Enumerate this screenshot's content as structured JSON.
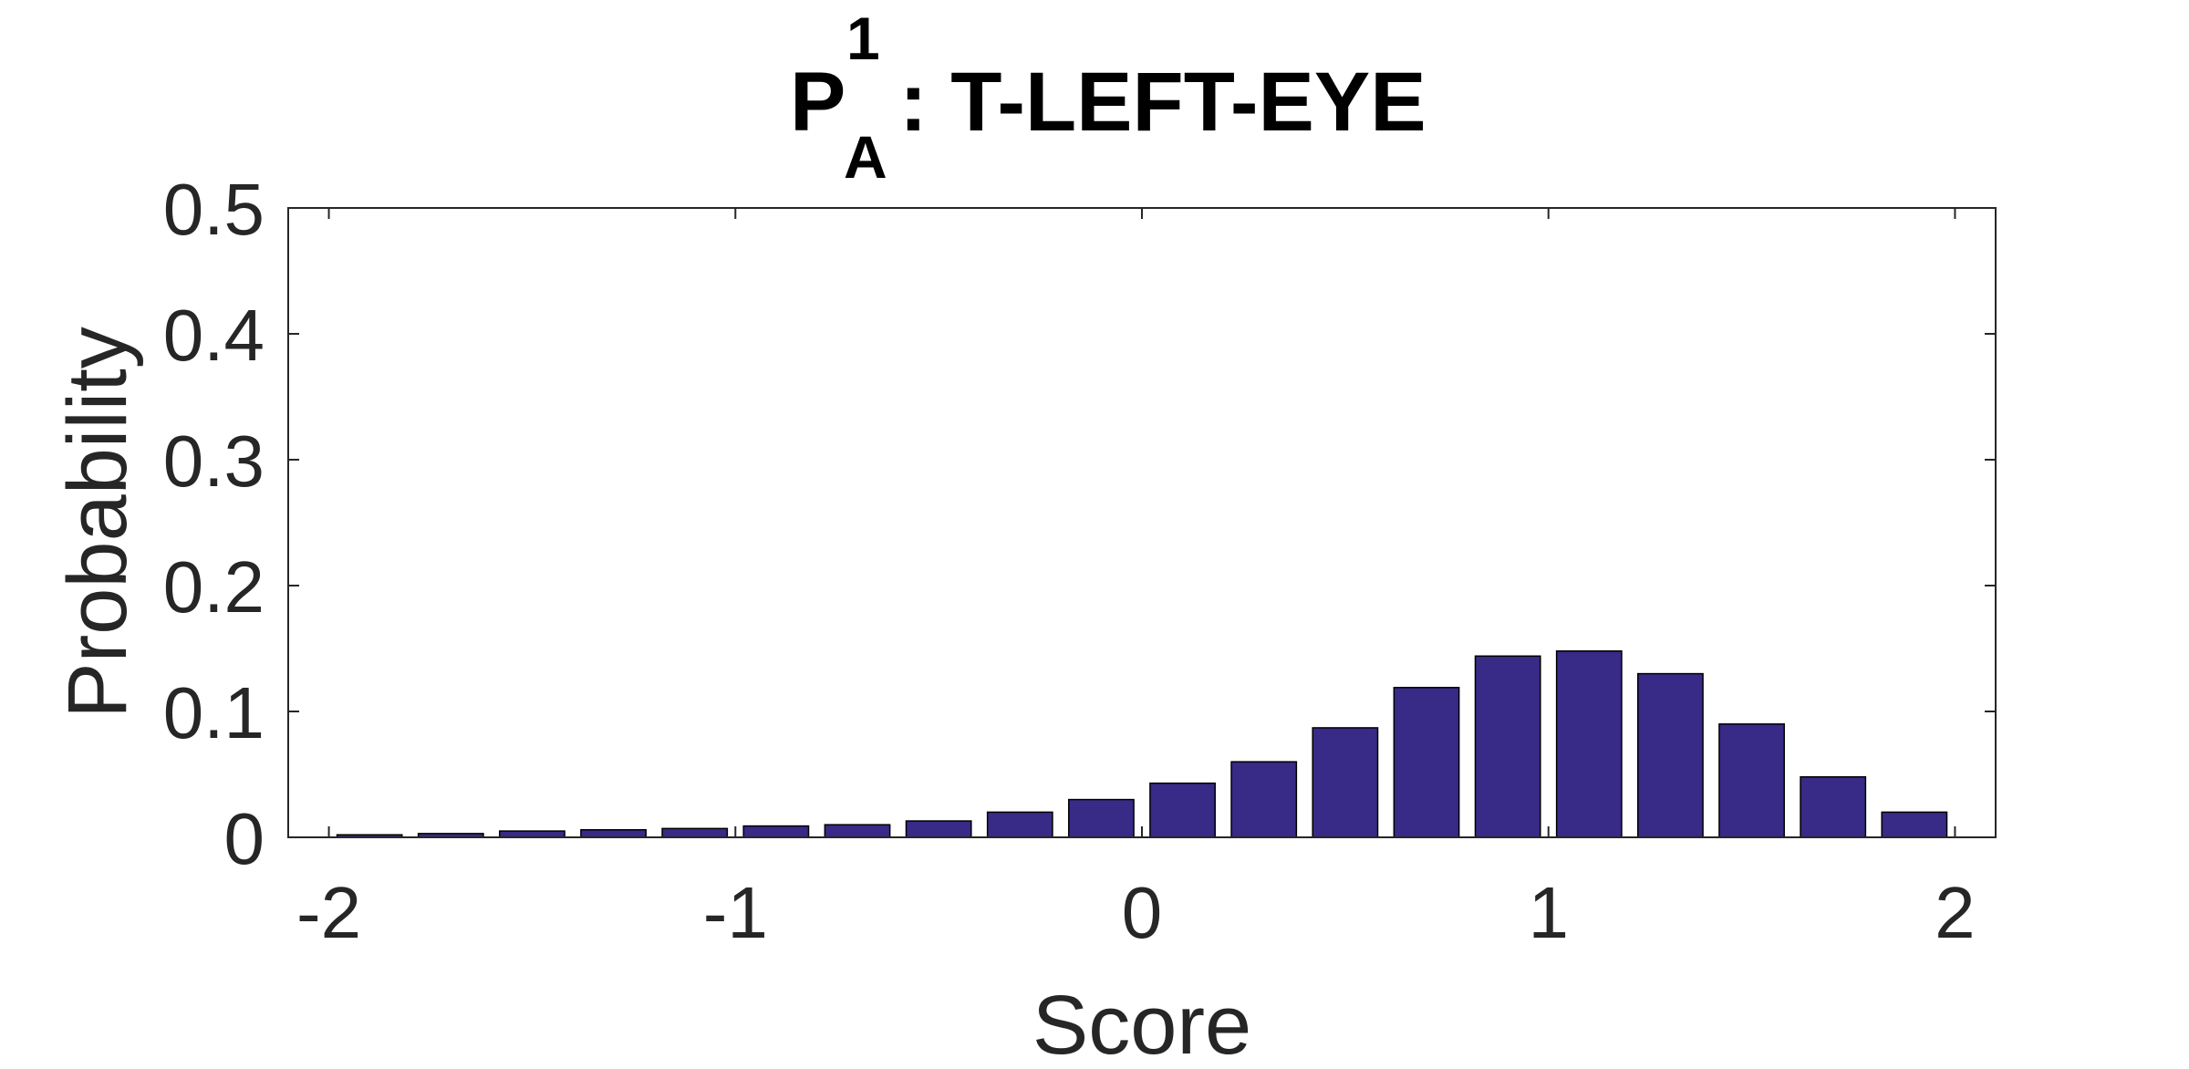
{
  "chart_data": {
    "type": "bar",
    "title": {
      "base": "P",
      "superscript": "1",
      "subscript": "A",
      "rest": ": T-LEFT-EYE"
    },
    "xlabel": "Score",
    "ylabel": "Probability",
    "xlim": [
      -2.1,
      2.1
    ],
    "ylim": [
      0,
      0.5
    ],
    "xticks": [
      -2,
      -1,
      0,
      1,
      2
    ],
    "xtick_labels": [
      "-2",
      "-1",
      "0",
      "1",
      "2"
    ],
    "yticks": [
      0,
      0.1,
      0.2,
      0.3,
      0.4,
      0.5
    ],
    "ytick_labels": [
      "0",
      "0.1",
      "0.2",
      "0.3",
      "0.4",
      "0.5"
    ],
    "bar_width": 0.16,
    "x": [
      -1.9,
      -1.7,
      -1.5,
      -1.3,
      -1.1,
      -0.9,
      -0.7,
      -0.5,
      -0.3,
      -0.1,
      0.1,
      0.3,
      0.5,
      0.7,
      0.9,
      1.1,
      1.3,
      1.5,
      1.7,
      1.9
    ],
    "values": [
      0.002,
      0.003,
      0.005,
      0.006,
      0.007,
      0.009,
      0.01,
      0.013,
      0.02,
      0.03,
      0.043,
      0.06,
      0.087,
      0.119,
      0.144,
      0.148,
      0.13,
      0.09,
      0.048,
      0.02
    ],
    "bar_color": "#382a87",
    "bar_edge_color": "#000000",
    "axis_color": "#262626",
    "grid": false,
    "box": true
  }
}
